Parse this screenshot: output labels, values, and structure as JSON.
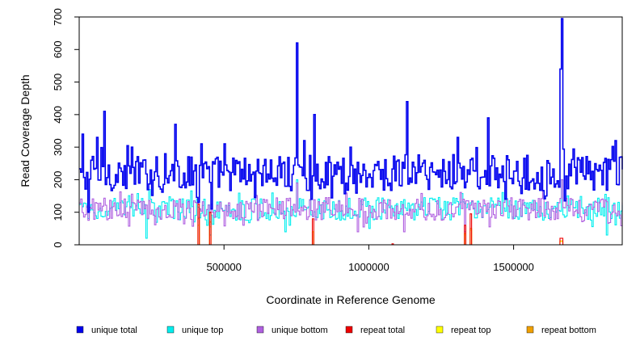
{
  "chart_data": {
    "type": "line",
    "title": "",
    "xlabel": "Coordinate in Reference Genome",
    "ylabel": "Read Coverage Depth",
    "xlim": [
      0,
      1875000
    ],
    "ylim": [
      0,
      700
    ],
    "x_ticks": [
      500000,
      1000000,
      1500000
    ],
    "y_ticks": [
      0,
      100,
      200,
      300,
      400,
      500,
      600,
      700
    ],
    "grid": false,
    "legend_position": "bottom",
    "bin_size": 5000,
    "legend": [
      {
        "name": "unique total",
        "color": "#0000ee"
      },
      {
        "name": "unique top",
        "color": "#00eeee"
      },
      {
        "name": "unique bottom",
        "color": "#b060e0"
      },
      {
        "name": "repeat total",
        "color": "#ee0000"
      },
      {
        "name": "repeat top",
        "color": "#ffff00"
      },
      {
        "name": "repeat bottom",
        "color": "#f0a000"
      }
    ],
    "series": [
      {
        "name": "unique total",
        "color": "#0000ee",
        "baseline": 220,
        "noise": 55,
        "peaks": [
          [
            10000,
            340
          ],
          [
            60000,
            330
          ],
          [
            85000,
            410
          ],
          [
            180000,
            300
          ],
          [
            330000,
            370
          ],
          [
            420000,
            310
          ],
          [
            500000,
            310
          ],
          [
            750000,
            620
          ],
          [
            775000,
            320
          ],
          [
            810000,
            400
          ],
          [
            935000,
            300
          ],
          [
            1130000,
            440
          ],
          [
            1305000,
            330
          ],
          [
            1410000,
            390
          ],
          [
            1660000,
            540
          ],
          [
            1665000,
            695
          ],
          [
            1850000,
            320
          ]
        ],
        "dips": [
          [
            30000,
            100
          ],
          [
            410000,
            130
          ],
          [
            455000,
            110
          ],
          [
            1470000,
            140
          ],
          [
            1610000,
            150
          ]
        ]
      },
      {
        "name": "unique top",
        "color": "#00eeee",
        "baseline": 110,
        "noise": 35,
        "peaks": [
          [
            240000,
            170
          ],
          [
            750000,
            200
          ],
          [
            1665000,
            200
          ]
        ],
        "dips": [
          [
            230000,
            20
          ],
          [
            450000,
            30
          ],
          [
            710000,
            40
          ],
          [
            1000000,
            50
          ],
          [
            1820000,
            30
          ]
        ]
      },
      {
        "name": "unique bottom",
        "color": "#b060e0",
        "baseline": 110,
        "noise": 35,
        "peaks": [
          [
            750000,
            190
          ],
          [
            1665000,
            200
          ]
        ],
        "dips": [
          [
            960000,
            40
          ],
          [
            1120000,
            40
          ],
          [
            1330000,
            40
          ]
        ]
      },
      {
        "name": "repeat total",
        "color": "#ee0000",
        "baseline": 0,
        "noise": 0,
        "peaks": [
          [
            410000,
            125
          ],
          [
            450000,
            100
          ],
          [
            805000,
            80
          ],
          [
            1080000,
            3
          ],
          [
            1330000,
            60
          ],
          [
            1350000,
            95
          ],
          [
            1662000,
            20
          ]
        ],
        "dips": []
      },
      {
        "name": "repeat top",
        "color": "#ffff00",
        "baseline": 0,
        "noise": 0,
        "peaks": [
          [
            410000,
            60
          ],
          [
            450000,
            55
          ],
          [
            805000,
            40
          ],
          [
            1330000,
            30
          ],
          [
            1350000,
            45
          ],
          [
            1662000,
            10
          ]
        ],
        "dips": []
      },
      {
        "name": "repeat bottom",
        "color": "#f0a000",
        "baseline": 0,
        "noise": 0,
        "peaks": [
          [
            410000,
            80
          ],
          [
            450000,
            70
          ],
          [
            805000,
            40
          ],
          [
            1330000,
            35
          ],
          [
            1350000,
            50
          ],
          [
            1662000,
            12
          ]
        ],
        "dips": []
      }
    ]
  }
}
